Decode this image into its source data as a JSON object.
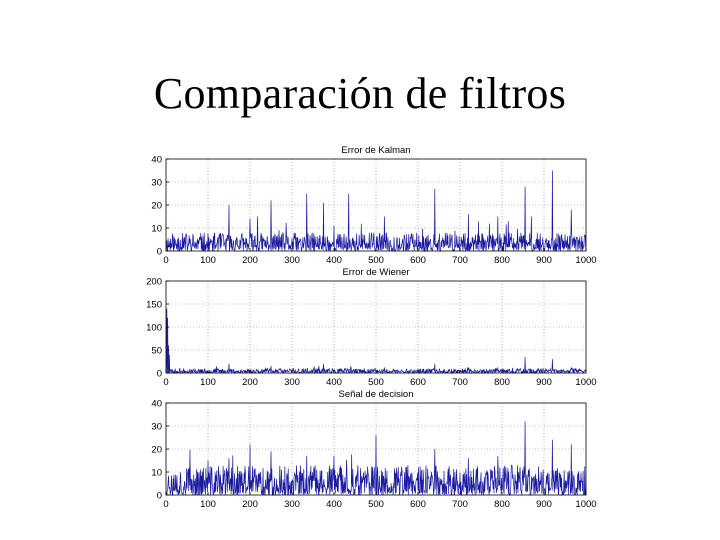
{
  "slide": {
    "title": "Comparación de filtros"
  },
  "colors": {
    "series": "#1a1aa0",
    "grid": "#8c8c8c",
    "axis": "#000000"
  },
  "chart_data": [
    {
      "type": "line",
      "title": "Error de Kalman",
      "xlim": [
        0,
        1000
      ],
      "ylim": [
        0,
        40
      ],
      "xticks": [
        0,
        100,
        200,
        300,
        400,
        500,
        600,
        700,
        800,
        900,
        1000
      ],
      "yticks": [
        0,
        10,
        20,
        30,
        40
      ],
      "grid": true,
      "series": [
        {
          "baseline_range": [
            0,
            8
          ],
          "noise_seed": 11,
          "peaks": [
            [
              150,
              20
            ],
            [
              200,
              14
            ],
            [
              218,
              15
            ],
            [
              250,
              22
            ],
            [
              335,
              25
            ],
            [
              375,
              21
            ],
            [
              400,
              11
            ],
            [
              435,
              25
            ],
            [
              520,
              15
            ],
            [
              640,
              27
            ],
            [
              720,
              16
            ],
            [
              790,
              15
            ],
            [
              815,
              13
            ],
            [
              855,
              28
            ],
            [
              870,
              15
            ],
            [
              920,
              35
            ],
            [
              965,
              18
            ]
          ]
        }
      ]
    },
    {
      "type": "line",
      "title": "Error de Wiener",
      "xlim": [
        0,
        1000
      ],
      "ylim": [
        0,
        200
      ],
      "xticks": [
        0,
        100,
        200,
        300,
        400,
        500,
        600,
        700,
        800,
        900,
        1000
      ],
      "yticks": [
        0,
        50,
        100,
        150,
        200
      ],
      "grid": true,
      "series": [
        {
          "baseline_range": [
            0,
            10
          ],
          "noise_seed": 23,
          "peaks": [
            [
              2,
              140
            ],
            [
              4,
              120
            ],
            [
              6,
              60
            ],
            [
              8,
              40
            ],
            [
              150,
              20
            ],
            [
              250,
              15
            ],
            [
              375,
              20
            ],
            [
              440,
              15
            ],
            [
              520,
              12
            ],
            [
              640,
              20
            ],
            [
              790,
              12
            ],
            [
              855,
              35
            ],
            [
              920,
              30
            ],
            [
              965,
              12
            ]
          ]
        }
      ]
    },
    {
      "type": "line",
      "title": "Señal de decision",
      "xlim": [
        0,
        1000
      ],
      "ylim": [
        0,
        40
      ],
      "xticks": [
        0,
        100,
        200,
        300,
        400,
        500,
        600,
        700,
        800,
        900,
        1000
      ],
      "yticks": [
        0,
        10,
        20,
        30,
        40
      ],
      "grid": true,
      "series": [
        {
          "baseline_range": [
            0,
            13
          ],
          "noise_seed": 37,
          "peaks": [
            [
              100,
              15
            ],
            [
              150,
              16
            ],
            [
              200,
              22
            ],
            [
              250,
              19
            ],
            [
              335,
              17
            ],
            [
              400,
              17
            ],
            [
              500,
              26
            ],
            [
              640,
              20
            ],
            [
              720,
              16
            ],
            [
              790,
              17
            ],
            [
              855,
              32
            ],
            [
              920,
              24
            ],
            [
              965,
              22
            ]
          ]
        }
      ]
    }
  ]
}
